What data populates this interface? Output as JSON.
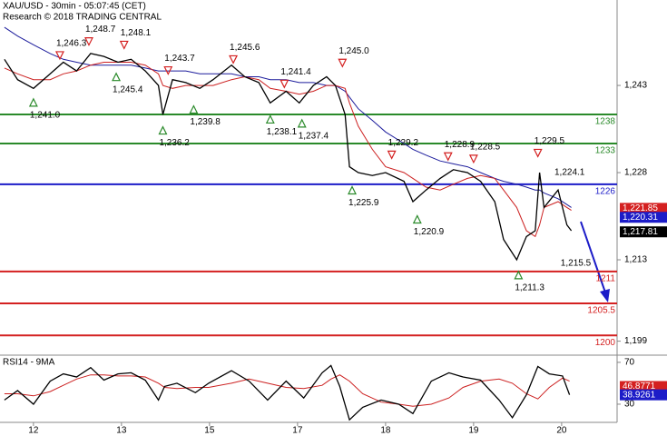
{
  "chart_data": [
    {
      "type": "line",
      "title": "XAU/USD - 30min - 05:07:45 (CET)",
      "subtitle": "Research © 2018 TRADING CENTRAL",
      "xlim": [
        -0.38,
        6.63
      ],
      "ylim": [
        1257.7,
        1196.75
      ],
      "yticks": [
        {
          "value": 1243,
          "label": "1,243"
        },
        {
          "value": 1228,
          "label": "1,228"
        },
        {
          "value": 1213,
          "label": "1,213"
        },
        {
          "value": 1199,
          "label": "1,199"
        }
      ],
      "x": [
        -0.33,
        -0.18,
        0,
        0.19,
        0.34,
        0.49,
        0.65,
        0.8,
        0.96,
        1.11,
        1.27,
        1.42,
        1.47,
        1.58,
        1.73,
        1.89,
        2.04,
        2.25,
        2.4,
        2.56,
        2.69,
        2.87,
        3.02,
        3.18,
        3.33,
        3.43,
        3.54,
        3.59,
        3.69,
        3.85,
        4,
        4.21,
        4.31,
        4.46,
        4.62,
        4.77,
        4.93,
        5.08,
        5.24,
        5.34,
        5.49,
        5.6,
        5.7,
        5.75,
        5.8,
        5.96,
        6.06,
        6.11
      ],
      "series": [
        {
          "color": "#1c1c9c",
          "values": [
            1253,
            1251.5,
            1250,
            1248.5,
            1247.5,
            1247,
            1246.5,
            1246.5,
            1246.5,
            1246.5,
            1246,
            1245.5,
            1245.5,
            1245.5,
            1245.5,
            1245,
            1245,
            1245,
            1244.5,
            1244.5,
            1244,
            1244,
            1243.5,
            1243.5,
            1243,
            1243,
            1242,
            1241,
            1239,
            1237,
            1235,
            1233,
            1232,
            1231,
            1230,
            1229.5,
            1229,
            1228,
            1227,
            1226.5,
            1226,
            1225.5,
            1225,
            1225,
            1224.5,
            1223.5,
            1222.5,
            1222
          ]
        },
        {
          "color": "#cc2020",
          "values": [
            1246,
            1245,
            1244,
            1244,
            1245,
            1245.5,
            1246.5,
            1247,
            1247,
            1247,
            1246.5,
            1245,
            1243,
            1242.5,
            1243,
            1243,
            1243,
            1244,
            1244.5,
            1244,
            1242.5,
            1242,
            1241.5,
            1242,
            1243,
            1243,
            1242.5,
            1240,
            1236,
            1232,
            1229,
            1228,
            1227,
            1225.5,
            1225,
            1226,
            1227,
            1227.5,
            1227,
            1225,
            1222,
            1218,
            1217,
            1219,
            1222,
            1223,
            1222,
            1221.5
          ]
        },
        {
          "color": "#000000",
          "values": [
            1247.5,
            1244,
            1242.5,
            1245,
            1247,
            1245.5,
            1248.5,
            1248,
            1247,
            1247.5,
            1245.5,
            1243,
            1238,
            1244,
            1243.5,
            1242.5,
            1244,
            1246.5,
            1244.5,
            1243.5,
            1240,
            1242,
            1240,
            1243,
            1244.5,
            1243,
            1238,
            1229,
            1228,
            1227.5,
            1228,
            1226.5,
            1223,
            1225,
            1227,
            1228.5,
            1228,
            1226.5,
            1223,
            1216.5,
            1213,
            1217,
            1218,
            1228,
            1222,
            1225,
            1219,
            1218
          ]
        }
      ],
      "levels": [
        {
          "value": 1238,
          "color": "#2a8a2a"
        },
        {
          "value": 1233,
          "color": "#2a8a2a"
        },
        {
          "value": 1226,
          "color": "#1c1cc8"
        },
        {
          "value": 1211,
          "color": "#d42020"
        },
        {
          "value": 1205.5,
          "color": "#d42020"
        },
        {
          "value": 1200,
          "color": "#d42020"
        }
      ],
      "annotations": [
        {
          "x": 0.3,
          "value": 1246.3,
          "label": "1,246.3",
          "side": "above",
          "triangle": true
        },
        {
          "x": 0.63,
          "value": 1248.7,
          "label": "1,248.7",
          "side": "above",
          "triangle": true
        },
        {
          "x": 1.03,
          "value": 1248.1,
          "label": "1,248.1",
          "side": "above",
          "triangle": true
        },
        {
          "x": 1.53,
          "value": 1243.7,
          "label": "1,243.7",
          "side": "above",
          "triangle": true
        },
        {
          "x": 2.27,
          "value": 1245.6,
          "label": "1,245.6",
          "side": "above",
          "triangle": true
        },
        {
          "x": 2.85,
          "value": 1241.4,
          "label": "1,241.4",
          "side": "above",
          "triangle": true
        },
        {
          "x": 3.51,
          "value": 1245.0,
          "label": "1,245.0",
          "side": "above",
          "triangle": true
        },
        {
          "x": 4.07,
          "value": 1229.2,
          "label": "1,229.2",
          "side": "above",
          "triangle": true
        },
        {
          "x": 4.71,
          "value": 1228.9,
          "label": "1,228.9",
          "side": "above",
          "triangle": true
        },
        {
          "x": 5.0,
          "value": 1228.5,
          "label": "1,228.5",
          "side": "above",
          "triangle": true
        },
        {
          "x": 5.73,
          "value": 1229.5,
          "label": "1,229.5",
          "side": "above",
          "triangle": true
        },
        {
          "x": 5.96,
          "value": 1224.1,
          "label": "1,224.1",
          "side": "above",
          "triangle": false
        },
        {
          "x": 0,
          "value": 1241.0,
          "label": "1,241.0",
          "side": "below",
          "triangle": true
        },
        {
          "x": 0.94,
          "value": 1245.4,
          "label": "1,245.4",
          "side": "below",
          "triangle": true
        },
        {
          "x": 1.47,
          "value": 1236.2,
          "label": "1,236.2",
          "side": "below",
          "triangle": true
        },
        {
          "x": 1.82,
          "value": 1239.8,
          "label": "1,239.8",
          "side": "below",
          "triangle": true
        },
        {
          "x": 2.69,
          "value": 1238.1,
          "label": "1,238.1",
          "side": "below",
          "triangle": true
        },
        {
          "x": 3.05,
          "value": 1237.4,
          "label": "1,237.4",
          "side": "below",
          "triangle": true
        },
        {
          "x": 3.62,
          "value": 1225.9,
          "label": "1,225.9",
          "side": "below",
          "triangle": true
        },
        {
          "x": 4.36,
          "value": 1220.9,
          "label": "1,220.9",
          "side": "below",
          "triangle": true
        },
        {
          "x": 5.51,
          "value": 1211.3,
          "label": "1,211.3",
          "side": "below",
          "triangle": true
        },
        {
          "x": 6.03,
          "value": 1215.5,
          "label": "1,215.5",
          "side": "below",
          "triangle": false
        }
      ],
      "price_tags": [
        {
          "value": 1221.85,
          "label": "1,221.85",
          "color": "#d42020"
        },
        {
          "value": 1220.31,
          "label": "1,220.31",
          "color": "#1c1cc8"
        },
        {
          "value": 1217.81,
          "label": "1,217.81",
          "color": "#000000"
        }
      ]
    },
    {
      "type": "line",
      "title": "RSI14 - 9MA",
      "xlim": [
        -0.38,
        6.63
      ],
      "ylim": [
        76,
        12.6
      ],
      "yticks": [
        70,
        30
      ],
      "xticks": [
        {
          "value": 0,
          "label": "12"
        },
        {
          "value": 1,
          "label": "13"
        },
        {
          "value": 2,
          "label": "15"
        },
        {
          "value": 3,
          "label": "17"
        },
        {
          "value": 4,
          "label": "18"
        },
        {
          "value": 5,
          "label": "19"
        },
        {
          "value": 6,
          "label": "20"
        }
      ],
      "x": [
        -0.33,
        -0.18,
        0,
        0.19,
        0.34,
        0.49,
        0.65,
        0.8,
        0.96,
        1.11,
        1.27,
        1.42,
        1.49,
        1.63,
        1.84,
        1.99,
        2.25,
        2.45,
        2.66,
        2.87,
        3.07,
        3.28,
        3.38,
        3.48,
        3.59,
        3.74,
        3.95,
        4.15,
        4.31,
        4.52,
        4.72,
        4.88,
        5.08,
        5.29,
        5.44,
        5.6,
        5.73,
        5.86,
        6.01,
        6.09
      ],
      "series": [
        {
          "color": "#cc2020",
          "values": [
            40,
            40,
            38,
            42,
            48,
            54,
            58,
            58,
            57,
            57,
            56,
            50,
            46,
            45,
            46,
            46,
            50,
            54,
            50,
            46,
            45,
            48,
            54,
            58,
            52,
            40,
            32,
            30,
            28,
            30,
            36,
            46,
            52,
            54,
            50,
            40,
            35,
            46,
            55,
            52
          ]
        },
        {
          "color": "#000000",
          "values": [
            34,
            43,
            30,
            52,
            59,
            56,
            65,
            53,
            59,
            60,
            53,
            34,
            47,
            50,
            41,
            50,
            62,
            52,
            34,
            52,
            36,
            60,
            67,
            47,
            15,
            27,
            34,
            30,
            21,
            52,
            60,
            56,
            53,
            34,
            17,
            39,
            66,
            59,
            57,
            39
          ]
        }
      ],
      "price_tags": [
        {
          "value": 46.8771,
          "color": "#d42020"
        },
        {
          "value": 38.9261,
          "color": "#1c1cc8"
        }
      ]
    }
  ]
}
